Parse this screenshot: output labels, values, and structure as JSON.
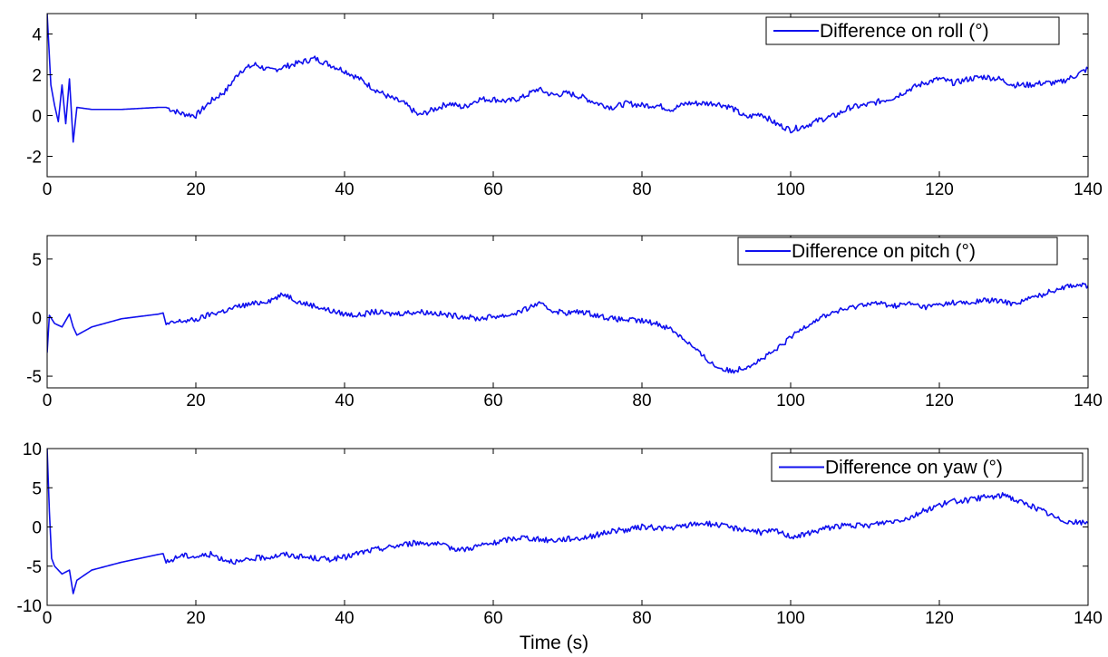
{
  "chart_data": [
    {
      "type": "line",
      "title": "",
      "xlabel": "",
      "ylabel": "",
      "xlim": [
        0,
        140
      ],
      "ylim": [
        -3,
        5
      ],
      "xticks": [
        "0",
        "20",
        "40",
        "60",
        "80",
        "100",
        "120",
        "140"
      ],
      "yticks": [
        "-2",
        "0",
        "2",
        "4"
      ],
      "legend_position": "top-right",
      "series": [
        {
          "name": "Difference on roll (°)",
          "color": "#1010ee",
          "x": [
            0,
            0.5,
            1,
            1.5,
            2,
            2.5,
            3,
            3.5,
            4,
            6,
            10,
            15,
            16,
            18,
            20,
            22,
            24,
            26,
            28,
            30,
            32,
            34,
            36,
            38,
            40,
            42,
            44,
            46,
            48,
            50,
            52,
            54,
            56,
            58,
            60,
            62,
            64,
            66,
            68,
            70,
            72,
            74,
            76,
            78,
            80,
            82,
            84,
            86,
            88,
            90,
            92,
            94,
            96,
            98,
            100,
            102,
            104,
            106,
            108,
            110,
            112,
            114,
            116,
            118,
            120,
            122,
            124,
            126,
            128,
            130,
            132,
            134,
            136,
            138,
            140
          ],
          "y": [
            5,
            1.5,
            0.5,
            -0.3,
            1.5,
            -0.4,
            1.8,
            -1.3,
            0.4,
            0.3,
            0.3,
            0.4,
            0.4,
            0.1,
            0.0,
            0.7,
            1.2,
            2.2,
            2.5,
            2.2,
            2.4,
            2.6,
            2.8,
            2.5,
            2.2,
            1.8,
            1.3,
            0.9,
            0.6,
            0.0,
            0.3,
            0.6,
            0.4,
            0.8,
            0.8,
            0.7,
            0.9,
            1.3,
            1.0,
            1.1,
            0.9,
            0.6,
            0.4,
            0.6,
            0.5,
            0.5,
            0.3,
            0.6,
            0.6,
            0.6,
            0.4,
            -0.1,
            0.1,
            -0.4,
            -0.7,
            -0.5,
            -0.2,
            0.0,
            0.4,
            0.5,
            0.7,
            0.9,
            1.3,
            1.6,
            1.8,
            1.6,
            1.8,
            1.9,
            1.8,
            1.5,
            1.5,
            1.6,
            1.6,
            1.9,
            2.3
          ]
        }
      ]
    },
    {
      "type": "line",
      "title": "",
      "xlabel": "",
      "ylabel": "",
      "xlim": [
        0,
        140
      ],
      "ylim": [
        -6,
        7
      ],
      "xticks": [
        "0",
        "20",
        "40",
        "60",
        "80",
        "100",
        "120",
        "140"
      ],
      "yticks": [
        "-5",
        "0",
        "5"
      ],
      "legend_position": "top-right",
      "series": [
        {
          "name": "Difference on pitch (°)",
          "color": "#1010ee",
          "x": [
            0,
            0.3,
            1,
            2,
            3,
            3.5,
            4,
            6,
            10,
            15,
            15.6,
            16,
            18,
            20,
            22,
            24,
            26,
            28,
            30,
            32,
            34,
            36,
            38,
            40,
            42,
            44,
            46,
            48,
            50,
            52,
            54,
            56,
            58,
            60,
            62,
            64,
            66,
            68,
            70,
            72,
            74,
            76,
            78,
            80,
            82,
            84,
            86,
            88,
            90,
            92,
            94,
            96,
            98,
            100,
            102,
            104,
            106,
            108,
            110,
            112,
            114,
            116,
            118,
            120,
            122,
            124,
            126,
            128,
            130,
            132,
            134,
            136,
            138,
            140
          ],
          "y": [
            -3,
            0.2,
            -0.5,
            -0.8,
            0.3,
            -0.8,
            -1.5,
            -0.8,
            -0.1,
            0.3,
            0.4,
            -0.6,
            -0.3,
            -0.2,
            0.3,
            0.6,
            1.0,
            1.2,
            1.5,
            2.0,
            1.3,
            1.0,
            0.6,
            0.3,
            0.2,
            0.5,
            0.3,
            0.4,
            0.5,
            0.4,
            0.2,
            0.1,
            -0.1,
            0.1,
            0.2,
            0.6,
            1.2,
            0.6,
            0.4,
            0.5,
            0.2,
            -0.1,
            -0.2,
            -0.3,
            -0.5,
            -1.0,
            -2.0,
            -3.2,
            -4.2,
            -4.6,
            -4.2,
            -3.6,
            -2.8,
            -1.7,
            -0.7,
            0.0,
            0.5,
            0.8,
            1.2,
            1.2,
            1.0,
            1.2,
            0.9,
            1.1,
            1.3,
            1.2,
            1.5,
            1.4,
            1.2,
            1.6,
            2.0,
            2.5,
            2.8,
            2.7
          ]
        }
      ]
    },
    {
      "type": "line",
      "title": "",
      "xlabel": "Time (s)",
      "ylabel": "",
      "xlim": [
        0,
        140
      ],
      "ylim": [
        -10,
        10
      ],
      "xticks": [
        "0",
        "20",
        "40",
        "60",
        "80",
        "100",
        "120",
        "140"
      ],
      "yticks": [
        "-10",
        "-5",
        "0",
        "5",
        "10"
      ],
      "legend_position": "top-right",
      "series": [
        {
          "name": "Difference on yaw (°)",
          "color": "#1010ee",
          "x": [
            0,
            0.3,
            0.6,
            1,
            2,
            3,
            3.5,
            4,
            6,
            10,
            15,
            15.6,
            16,
            18,
            20,
            22,
            24,
            26,
            28,
            30,
            32,
            34,
            36,
            38,
            40,
            42,
            44,
            46,
            48,
            50,
            52,
            54,
            56,
            58,
            60,
            62,
            64,
            66,
            68,
            70,
            72,
            74,
            76,
            78,
            80,
            82,
            84,
            86,
            88,
            90,
            92,
            94,
            96,
            98,
            100,
            102,
            104,
            106,
            108,
            110,
            112,
            114,
            116,
            118,
            120,
            122,
            124,
            126,
            128,
            129,
            130,
            132,
            134,
            136,
            138,
            140
          ],
          "y": [
            10,
            2,
            -4,
            -5,
            -6,
            -5.5,
            -8.5,
            -6.8,
            -5.5,
            -4.5,
            -3.5,
            -3.4,
            -4.6,
            -3.6,
            -3.8,
            -3.5,
            -4.2,
            -4.5,
            -4.0,
            -3.8,
            -3.5,
            -3.8,
            -4.0,
            -4.1,
            -3.9,
            -3.3,
            -2.9,
            -2.6,
            -2.2,
            -2.0,
            -2.1,
            -2.6,
            -2.9,
            -2.4,
            -2.1,
            -1.6,
            -1.3,
            -1.6,
            -1.7,
            -1.5,
            -1.4,
            -1.0,
            -0.5,
            -0.4,
            0.0,
            -0.1,
            -0.2,
            0.2,
            0.5,
            0.3,
            -0.1,
            -0.3,
            -0.7,
            -0.5,
            -1.2,
            -1.0,
            -0.3,
            0.1,
            0.2,
            0.1,
            0.5,
            0.8,
            1.2,
            2.1,
            2.8,
            3.3,
            3.4,
            3.8,
            3.9,
            4.2,
            3.5,
            2.8,
            2.0,
            1.0,
            0.6,
            0.5
          ]
        }
      ]
    }
  ]
}
